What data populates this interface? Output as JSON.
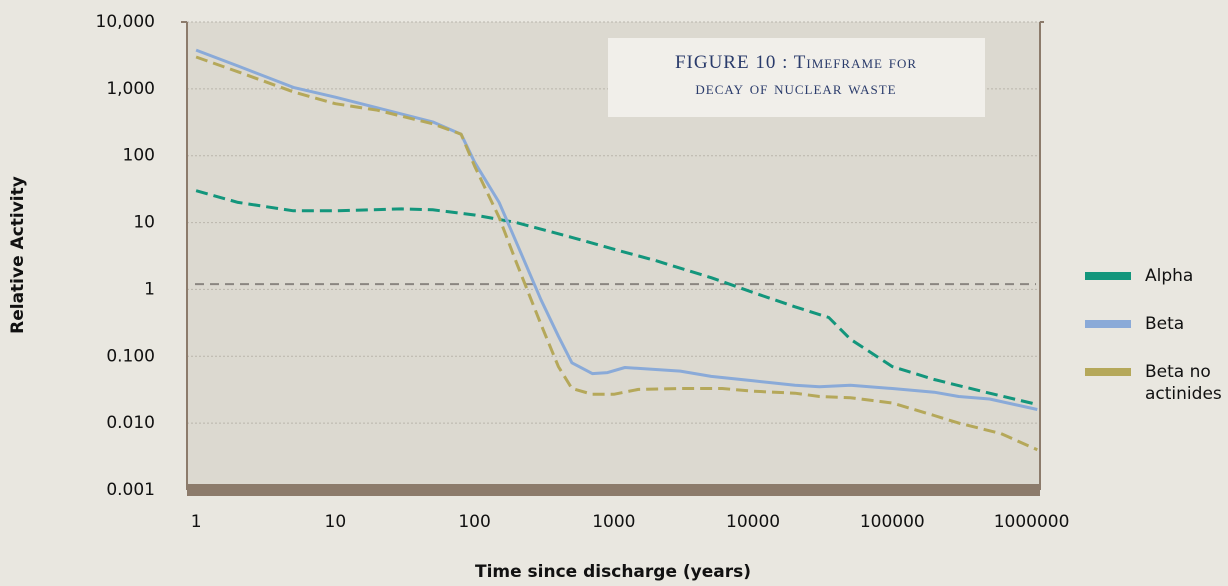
{
  "chart_data": {
    "type": "line",
    "title": "FIGURE 10  :  Timeframe for decay of nuclear waste",
    "xlabel": "Time since discharge (years)",
    "ylabel": "Relative Activity",
    "xscale": "log",
    "yscale": "log",
    "xlim": [
      0.86,
      1150000
    ],
    "ylim": [
      0.001,
      10000
    ],
    "xticks": [
      1,
      10,
      100,
      1000,
      10000,
      100000,
      1000000
    ],
    "yticks": [
      {
        "value": 10000,
        "label": "10,000"
      },
      {
        "value": 1000,
        "label": "1,000"
      },
      100,
      10,
      1,
      {
        "value": 0.1,
        "label": "0.100"
      },
      {
        "value": 0.01,
        "label": "0.010"
      },
      {
        "value": 0.001,
        "label": "0.001"
      }
    ],
    "grid": true,
    "legend": "right",
    "reference_line": 1.2,
    "series": [
      {
        "name": "Alpha",
        "color": "#13967c",
        "line_style": "dashed",
        "x": [
          1,
          2,
          5,
          10,
          30,
          50,
          100,
          200,
          500,
          1000,
          2000,
          5000,
          10000,
          20000,
          35000,
          50000,
          100000,
          200000,
          500000,
          1100000
        ],
        "values": [
          30,
          20,
          15,
          15,
          16,
          15.5,
          13,
          10,
          6,
          4,
          2.7,
          1.5,
          0.9,
          0.55,
          0.38,
          0.18,
          0.07,
          0.045,
          0.028,
          0.019
        ]
      },
      {
        "name": "Beta",
        "color": "#8aaad8",
        "line_style": "solid",
        "x": [
          1,
          2,
          5,
          10,
          20,
          50,
          80,
          100,
          150,
          200,
          300,
          400,
          500,
          700,
          900,
          1200,
          3000,
          5000,
          10000,
          20000,
          30000,
          50000,
          100000,
          200000,
          300000,
          500000,
          1100000
        ],
        "values": [
          3800,
          2200,
          1050,
          750,
          520,
          320,
          210,
          80,
          20,
          5,
          0.7,
          0.2,
          0.08,
          0.055,
          0.057,
          0.068,
          0.06,
          0.05,
          0.043,
          0.037,
          0.035,
          0.037,
          0.033,
          0.029,
          0.025,
          0.023,
          0.016
        ]
      },
      {
        "name": "Beta no actinides",
        "color": "#b5a85a",
        "line_style": "dashed",
        "x": [
          1,
          2,
          5,
          10,
          20,
          50,
          80,
          100,
          150,
          200,
          300,
          400,
          500,
          700,
          1000,
          1500,
          3000,
          6000,
          10000,
          20000,
          30000,
          50000,
          100000,
          200000,
          300000,
          600000,
          1100000
        ],
        "values": [
          3000,
          1800,
          900,
          600,
          480,
          300,
          210,
          70,
          12,
          2.5,
          0.3,
          0.07,
          0.033,
          0.027,
          0.027,
          0.032,
          0.033,
          0.033,
          0.03,
          0.028,
          0.025,
          0.024,
          0.02,
          0.013,
          0.01,
          0.007,
          0.004
        ]
      }
    ]
  }
}
